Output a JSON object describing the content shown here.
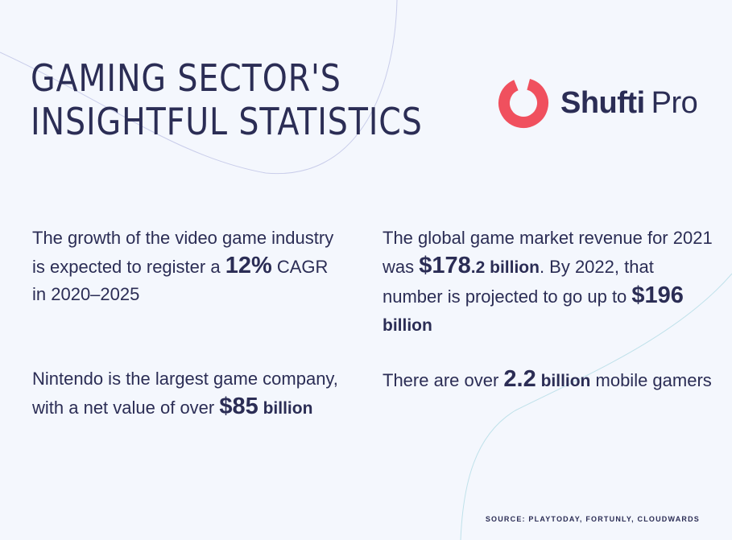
{
  "title": {
    "line1": "GAMING SECTOR'S",
    "line2": "INSIGHTFUL STATISTICS"
  },
  "logo": {
    "icon": "shufti-pro-ring-icon",
    "word1": "Shufti",
    "word2": "Pro",
    "color": "#f0505e"
  },
  "stats": [
    {
      "pre": "The growth of the video game industry is expected to register a ",
      "highlight": "12%",
      "post": " CAGR in 2020–2025"
    },
    {
      "pre": "The global game market revenue for 2021 was ",
      "highlight": "$178",
      "highlight_small": ".2 billion",
      "mid": ". By 2022, that number is projected to go up to ",
      "highlight2": "$196",
      "highlight2_small": " billion"
    },
    {
      "pre": "Nintendo is the largest game company, with a net value of over ",
      "highlight": "$85",
      "highlight_small": " billion"
    },
    {
      "pre": "There are over ",
      "highlight": "2.2",
      "highlight_small": " billion",
      "post": " mobile gamers"
    }
  ],
  "source": "SOURCE: PLAYTODAY, FORTUNLY, CLOUDWARDS",
  "colors": {
    "background": "#f4f7fd",
    "text": "#2b2d55",
    "accent": "#f0505e",
    "decor_line_1": "#c9cdea",
    "decor_line_2": "#bfe1ea"
  }
}
